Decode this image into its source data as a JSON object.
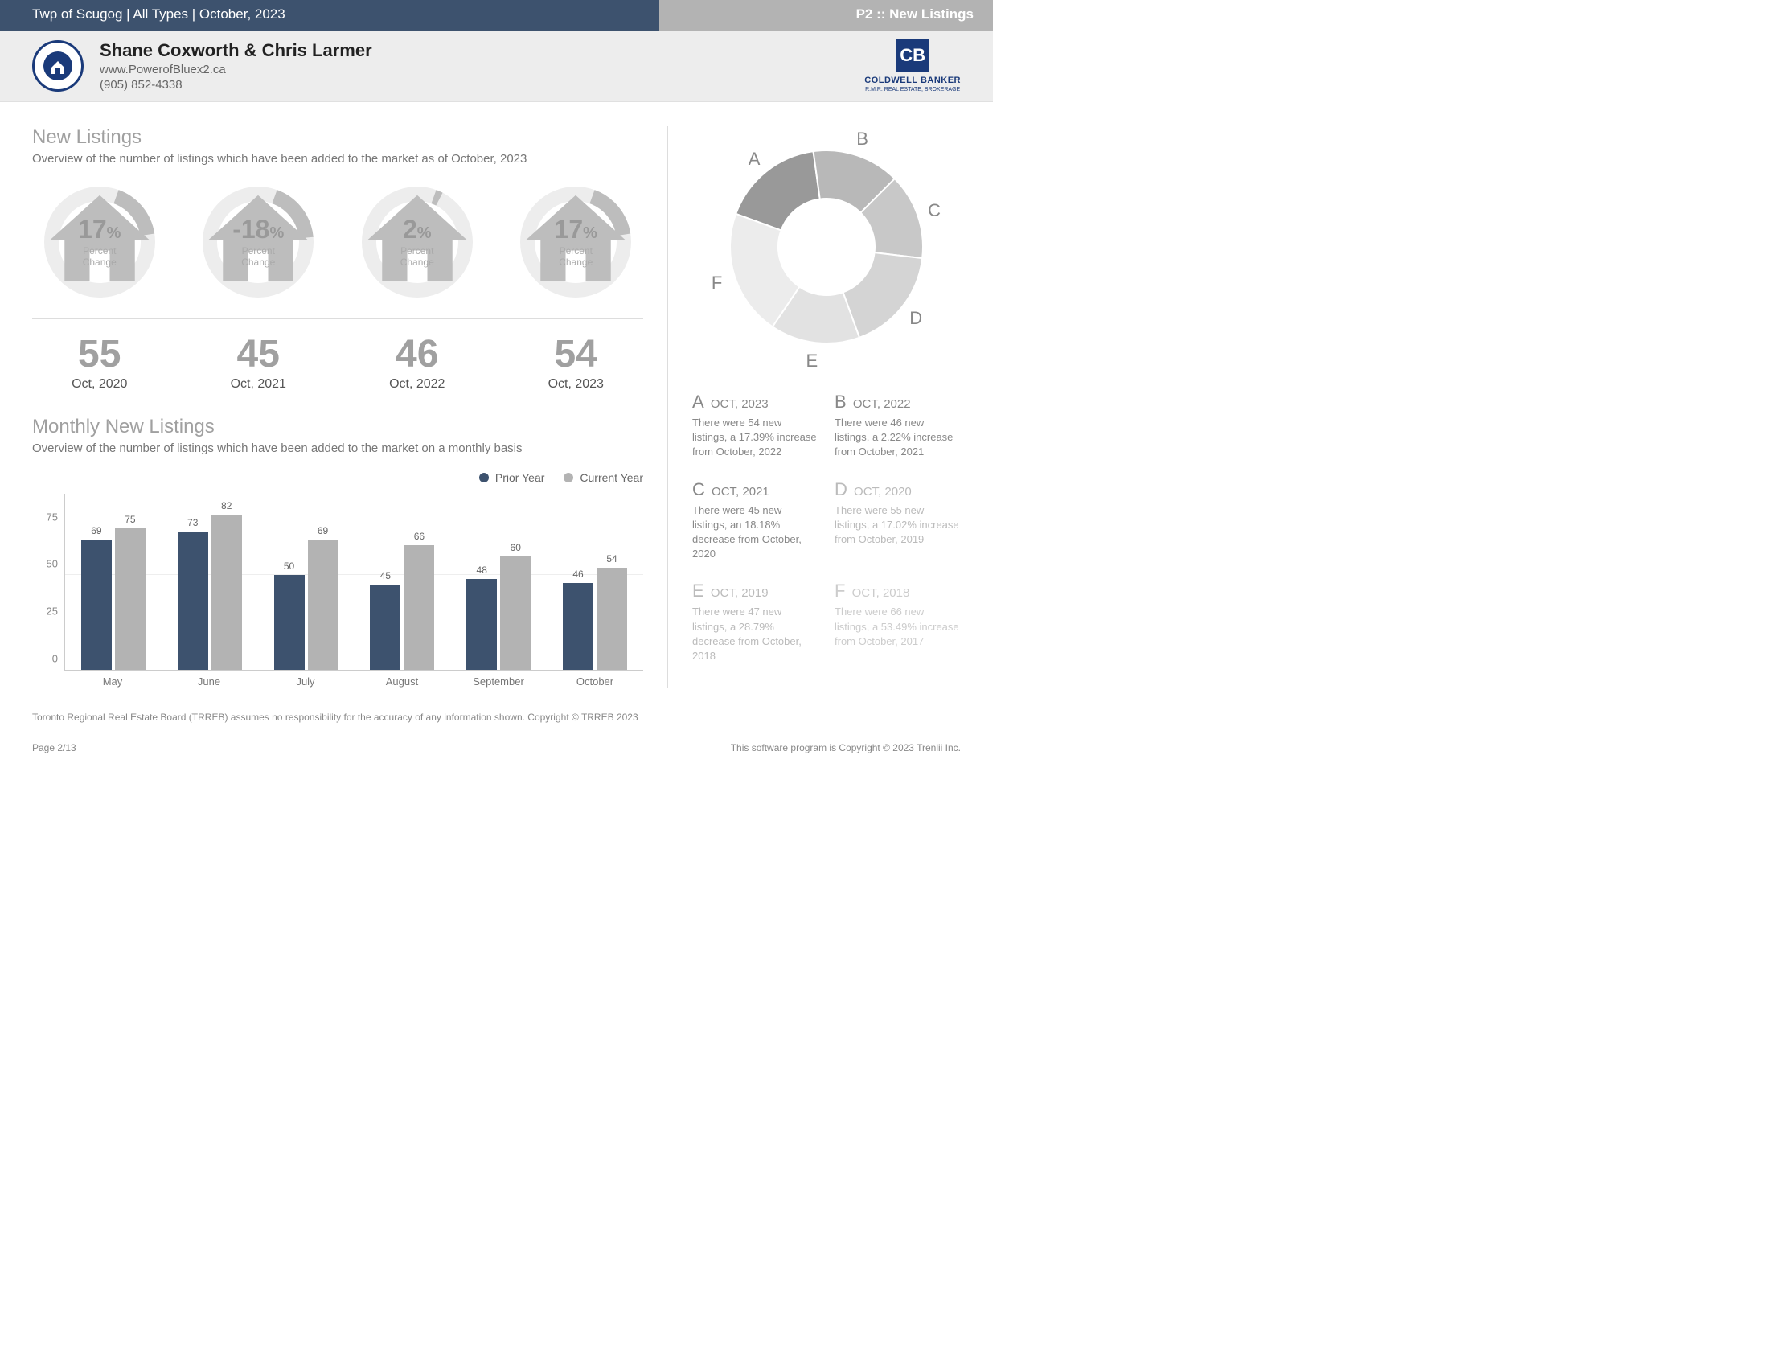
{
  "topbar": {
    "left": "Twp of Scugog | All Types | October, 2023",
    "right": "P2 :: New Listings"
  },
  "header": {
    "agent_name": "Shane Coxworth & Chris Larmer",
    "url": "www.PowerofBluex2.ca",
    "phone": "(905) 852-4338",
    "broker_name": "COLDWELL BANKER",
    "broker_sub": "R.M.R. REAL ESTATE, BROKERAGE"
  },
  "section1": {
    "title": "New Listings",
    "sub": "Overview of the number of listings which have been added to the market as of October, 2023"
  },
  "gauges": [
    {
      "value": "17",
      "suffix": "%",
      "label": "Percent Change",
      "arc_pct": 17
    },
    {
      "value": "-18",
      "suffix": "%",
      "label": "Percent Change",
      "arc_pct": 18
    },
    {
      "value": "2",
      "suffix": "%",
      "label": "Percent Change",
      "arc_pct": 2
    },
    {
      "value": "17",
      "suffix": "%",
      "label": "Percent Change",
      "arc_pct": 17
    }
  ],
  "yearly": [
    {
      "value": "55",
      "label": "Oct, 2020"
    },
    {
      "value": "45",
      "label": "Oct, 2021"
    },
    {
      "value": "46",
      "label": "Oct, 2022"
    },
    {
      "value": "54",
      "label": "Oct, 2023"
    }
  ],
  "section2": {
    "title": "Monthly New Listings",
    "sub": "Overview of the number of listings which have been added to the market on a monthly basis"
  },
  "legend": {
    "prior_label": "Prior Year",
    "current_label": "Current Year",
    "prior_color": "#3d526e",
    "current_color": "#b3b3b3"
  },
  "barchart": {
    "y_max": 85,
    "y_ticks": [
      0,
      25,
      50,
      75
    ],
    "months": [
      "May",
      "June",
      "July",
      "August",
      "September",
      "October"
    ],
    "prior": [
      69,
      73,
      50,
      45,
      48,
      46
    ],
    "current": [
      75,
      82,
      69,
      66,
      60,
      54
    ],
    "prior_color": "#3d526e",
    "current_color": "#b3b3b3",
    "grid_color": "#eeeeee"
  },
  "donut": {
    "slices": [
      {
        "letter": "A",
        "value": 54,
        "color": "#999999"
      },
      {
        "letter": "B",
        "value": 46,
        "color": "#b8b8b8"
      },
      {
        "letter": "C",
        "value": 45,
        "color": "#c8c8c8"
      },
      {
        "letter": "D",
        "value": 55,
        "color": "#d4d4d4"
      },
      {
        "letter": "E",
        "value": 47,
        "color": "#e2e2e2"
      },
      {
        "letter": "F",
        "value": 66,
        "color": "#ececec"
      }
    ],
    "inner_radius": 60,
    "outer_radius": 120,
    "start_angle_deg": -70
  },
  "annotations": [
    {
      "letter": "A",
      "period": "OCT, 2023",
      "text": "There were 54 new listings, a 17.39% increase from October, 2022",
      "fade": ""
    },
    {
      "letter": "B",
      "period": "OCT, 2022",
      "text": "There were 46 new listings, a 2.22% increase from October, 2021",
      "fade": ""
    },
    {
      "letter": "C",
      "period": "OCT, 2021",
      "text": "There were 45 new listings, an 18.18% decrease from October, 2020",
      "fade": ""
    },
    {
      "letter": "D",
      "period": "OCT, 2020",
      "text": "There were 55 new listings, a 17.02% increase from October, 2019",
      "fade": "semi"
    },
    {
      "letter": "E",
      "period": "OCT, 2019",
      "text": "There were 47 new listings, a 28.79% decrease from October, 2018",
      "fade": "semi"
    },
    {
      "letter": "F",
      "period": "OCT, 2018",
      "text": "There were 66 new listings, a 53.49% increase from October, 2017",
      "fade": "faded"
    }
  ],
  "footer": {
    "disclaimer": "Toronto Regional Real Estate Board (TRREB) assumes no responsibility for the accuracy of any information shown. Copyright © TRREB 2023",
    "page": "Page 2/13",
    "copyright": "This software program is Copyright © 2023 Trenlii Inc."
  }
}
